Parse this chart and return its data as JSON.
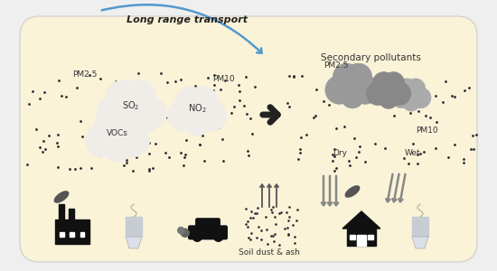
{
  "bg_color": "#faf3d8",
  "bg_outer": "#efefef",
  "title_transport": "Long range transport",
  "title_secondary": "Secondary pollutants",
  "label_pm25_left": "PM2.5",
  "label_so2": "SO₂",
  "label_no2": "NO₂",
  "label_vocs": "VOCs",
  "label_pm10_left": "PM10",
  "label_pm25_right": "PM2.5",
  "label_pm10_right": "PM10",
  "label_dry": "Dry",
  "label_wet": "Wet",
  "label_soil": "Soil dust & ash",
  "arrow_color": "#5599cc",
  "dark_color": "#222222",
  "cloud_light": "#f0ede8",
  "cloud_dark1": "#999999",
  "cloud_dark2": "#888888",
  "cloud_dark3": "#aaaaaa",
  "dot_color": "#2a2530",
  "text_color": "#333333",
  "smoke_color": "#555555",
  "depo_arrow_color": "#888888"
}
